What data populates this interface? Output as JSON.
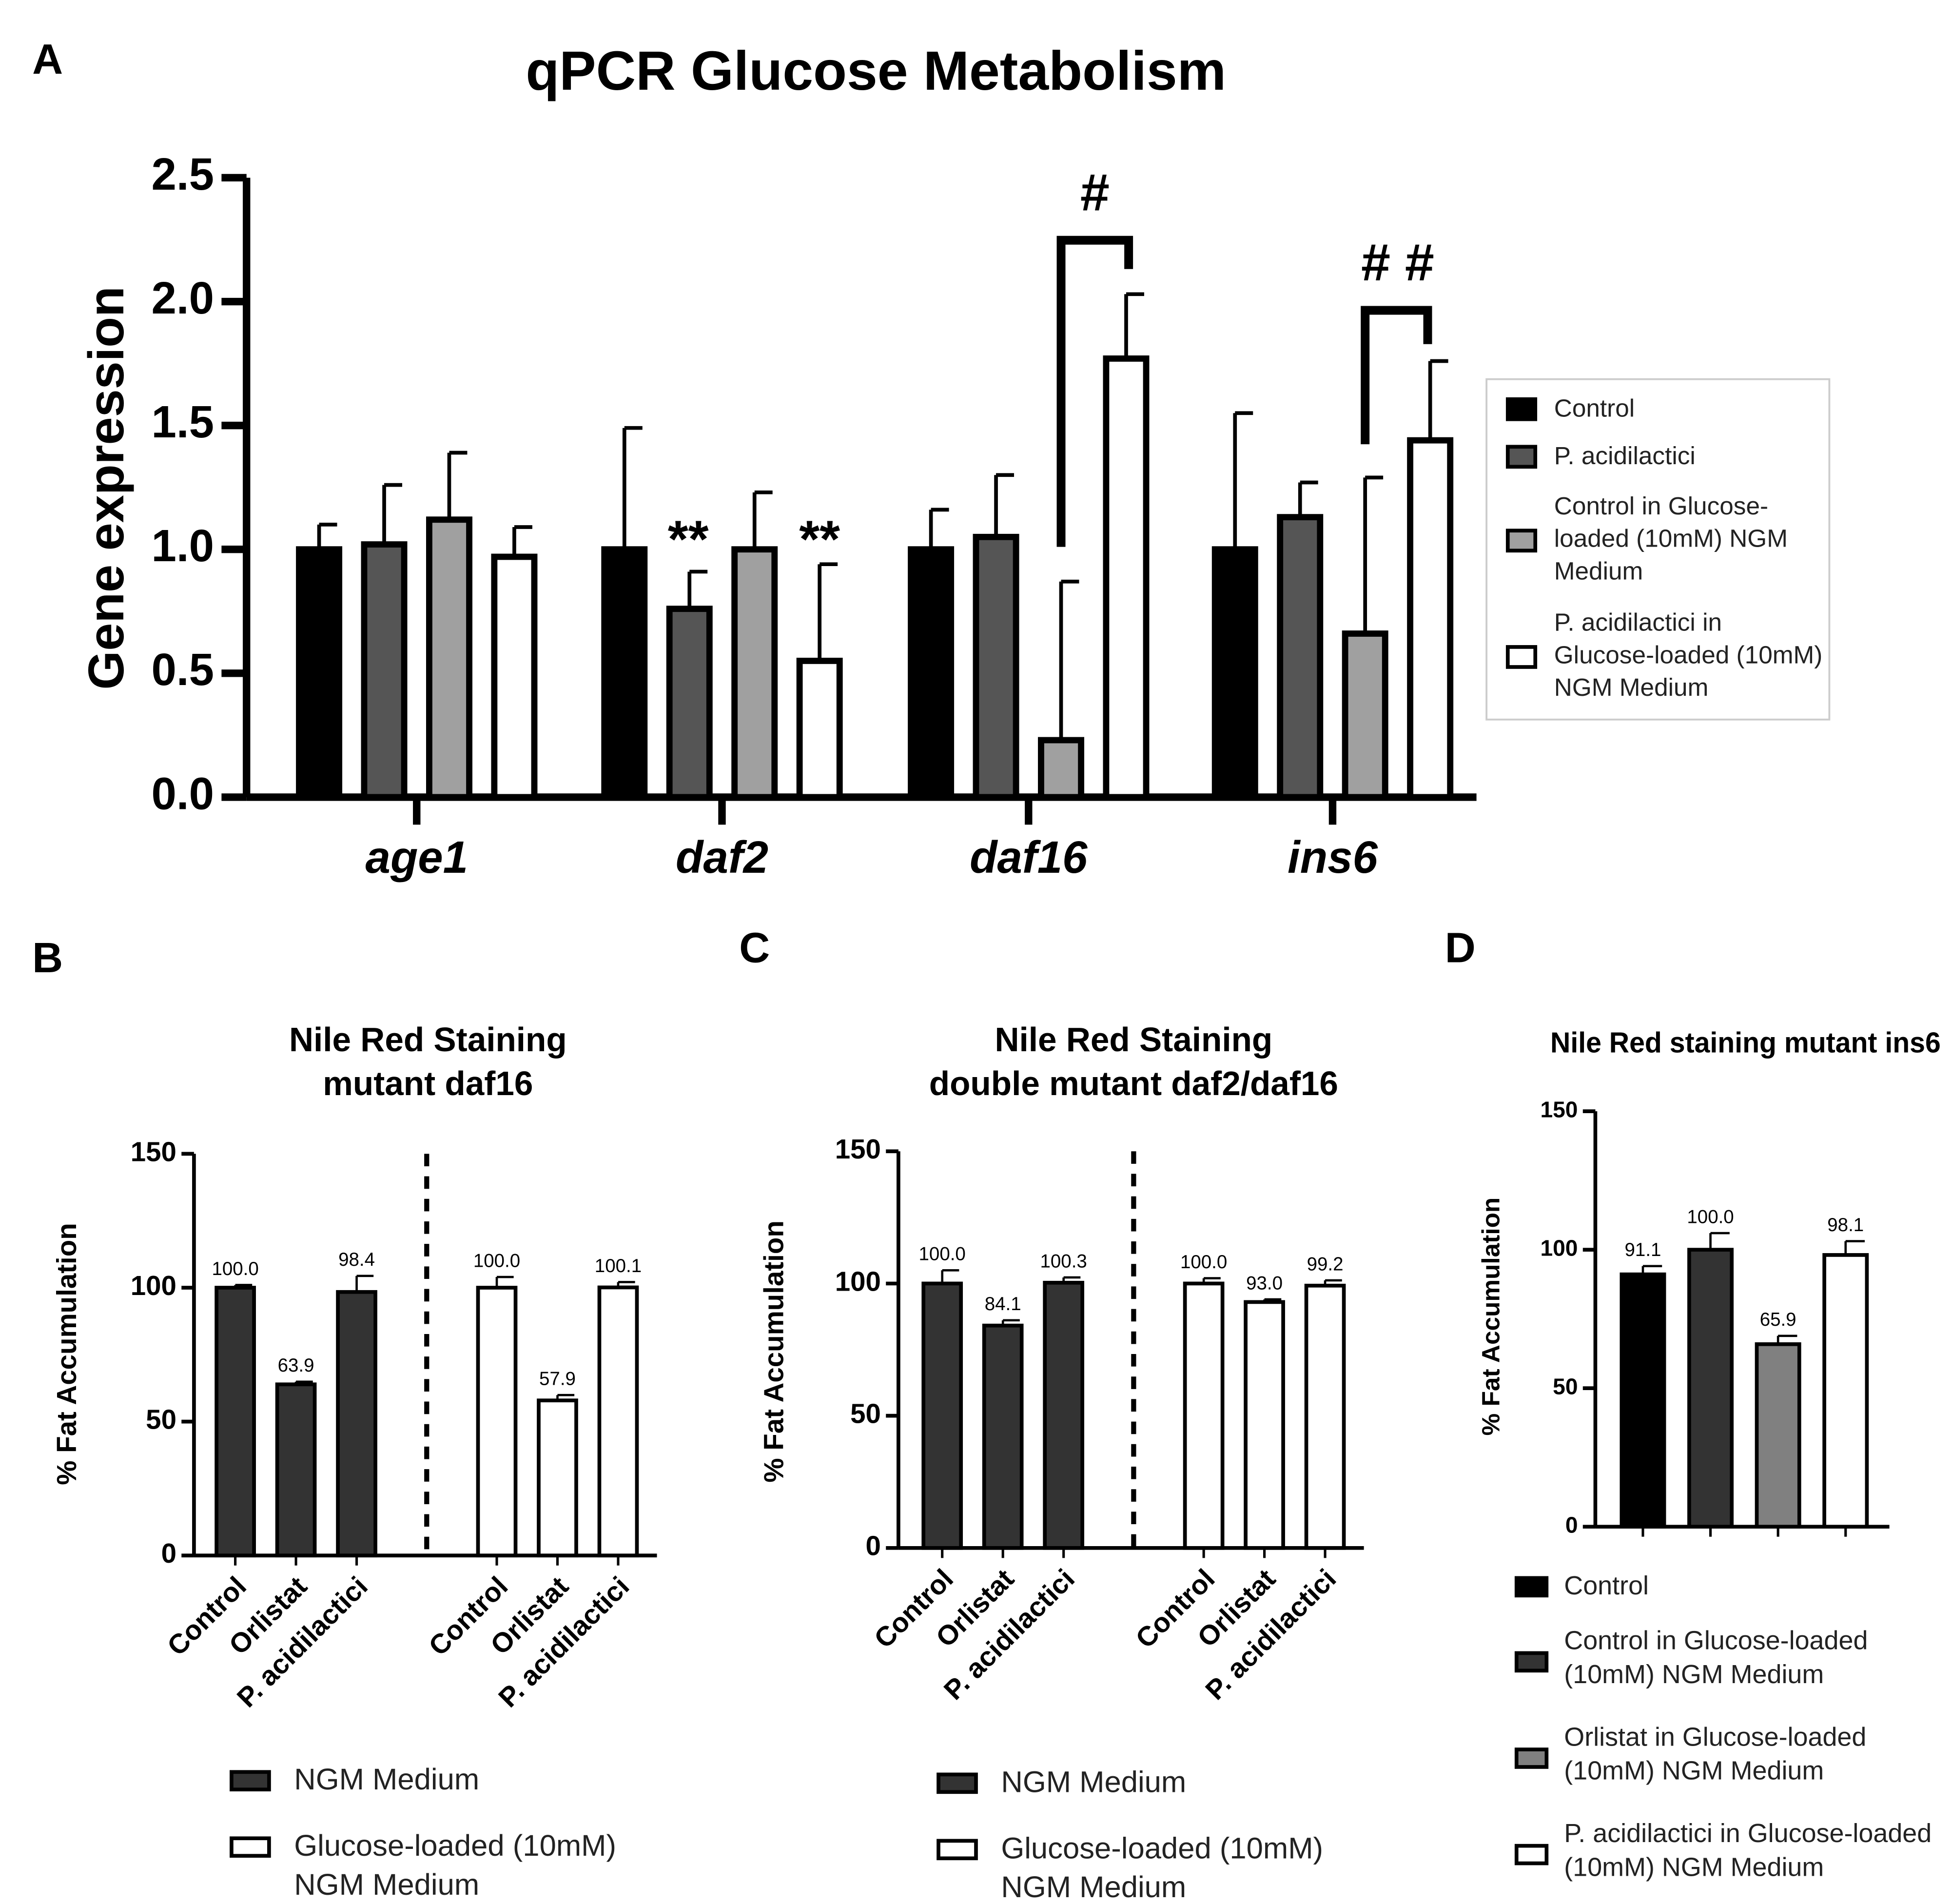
{
  "chart_data": [
    {
      "type": "bar",
      "panel": "A",
      "title": "qPCR Glucose Metabolism",
      "ylabel": "Gene expression",
      "categories": [
        "age1",
        "daf2",
        "daf16",
        "ins6"
      ],
      "series": [
        {
          "name": "Control",
          "color": "#000000",
          "values": [
            1.0,
            1.0,
            1.0,
            1.0
          ],
          "errors": [
            0.1,
            0.49,
            0.16,
            0.55
          ]
        },
        {
          "name": "P. acidilactici",
          "color": "#555555",
          "values": [
            1.02,
            0.76,
            1.05,
            1.13
          ],
          "errors": [
            0.24,
            0.15,
            0.25,
            0.14
          ]
        },
        {
          "name": "Control in Glucose-loaded (10mM) NGM Medium",
          "color": "#a0a0a0",
          "values": [
            1.12,
            1.0,
            0.23,
            0.66
          ],
          "errors": [
            0.27,
            0.23,
            0.64,
            0.63
          ]
        },
        {
          "name": "P. acidilactici in Glucose-loaded (10mM) NGM Medium",
          "color": "#ffffff",
          "values": [
            0.97,
            0.55,
            1.77,
            1.44
          ],
          "errors": [
            0.12,
            0.39,
            0.26,
            0.32
          ]
        }
      ],
      "annotations": [
        "**",
        "**",
        "#",
        "# #"
      ],
      "ylim": [
        0,
        2.5
      ],
      "yticks": [
        {
          "value": 0,
          "label": "0.0"
        },
        0.5,
        {
          "value": 1,
          "label": "1.0"
        },
        1.5,
        {
          "value": 2,
          "label": "2.0"
        },
        2.5
      ]
    },
    {
      "type": "bar",
      "panel": "B",
      "title": [
        "Nile Red Staining",
        "mutant daf16"
      ],
      "ylabel": "% Fat Accumulation",
      "categories": [
        "Control",
        "Orlistat",
        "P. acidilactici"
      ],
      "series": [
        {
          "name": "NGM Medium",
          "color": "#333333",
          "values": [
            100.0,
            63.9,
            98.4
          ],
          "value_labels": [
            "100.0",
            "63.9",
            "98.4"
          ],
          "errors": [
            1,
            1,
            6
          ]
        },
        {
          "name": "Glucose-loaded (10mM) NGM Medium",
          "color": "#ffffff",
          "values": [
            100.0,
            57.9,
            100.1
          ],
          "value_labels": [
            "100.0",
            "57.9",
            "100.1"
          ],
          "errors": [
            4,
            2,
            2
          ]
        }
      ],
      "ylim": [
        0,
        150
      ],
      "yticks": [
        0,
        50,
        100,
        150
      ]
    },
    {
      "type": "bar",
      "panel": "C",
      "title": [
        "Nile Red Staining",
        "double mutant daf2/daf16"
      ],
      "ylabel": "% Fat Accumulation",
      "categories": [
        "Control",
        "Orlistat",
        "P. acidilactici"
      ],
      "series": [
        {
          "name": "NGM Medium",
          "color": "#333333",
          "values": [
            100.0,
            84.1,
            100.3
          ],
          "value_labels": [
            "100.0",
            "84.1",
            "100.3"
          ],
          "errors": [
            5,
            2,
            2
          ]
        },
        {
          "name": "Glucose-loaded (10mM) NGM Medium",
          "color": "#ffffff",
          "values": [
            100.0,
            93.0,
            99.2
          ],
          "value_labels": [
            "100.0",
            "93.0",
            "99.2"
          ],
          "errors": [
            2,
            1,
            2
          ]
        }
      ],
      "ylim": [
        0,
        150
      ],
      "yticks": [
        0,
        50,
        100,
        150
      ]
    },
    {
      "type": "bar",
      "panel": "D",
      "title": "Nile Red staining mutant ins6",
      "ylabel": "% Fat Accumulation",
      "series": [
        {
          "name": "Control",
          "color": "#000000",
          "values": [
            91.1
          ],
          "value_labels": [
            "91.1"
          ],
          "errors": [
            3
          ]
        },
        {
          "name": "Control in Glucose-loaded (10mM) NGM Medium",
          "color": "#333333",
          "values": [
            100.0
          ],
          "value_labels": [
            "100.0"
          ],
          "errors": [
            6
          ]
        },
        {
          "name": "Orlistat in Glucose-loaded (10mM) NGM Medium",
          "color": "#808080",
          "values": [
            65.9
          ],
          "value_labels": [
            "65.9"
          ],
          "errors": [
            3
          ]
        },
        {
          "name": "P. acidilactici in Glucose-loaded (10mM) NGM Medium",
          "color": "#ffffff",
          "values": [
            98.1
          ],
          "value_labels": [
            "98.1"
          ],
          "errors": [
            5
          ]
        }
      ],
      "ylim": [
        0,
        150
      ],
      "yticks": [
        0,
        50,
        100,
        150
      ]
    }
  ]
}
